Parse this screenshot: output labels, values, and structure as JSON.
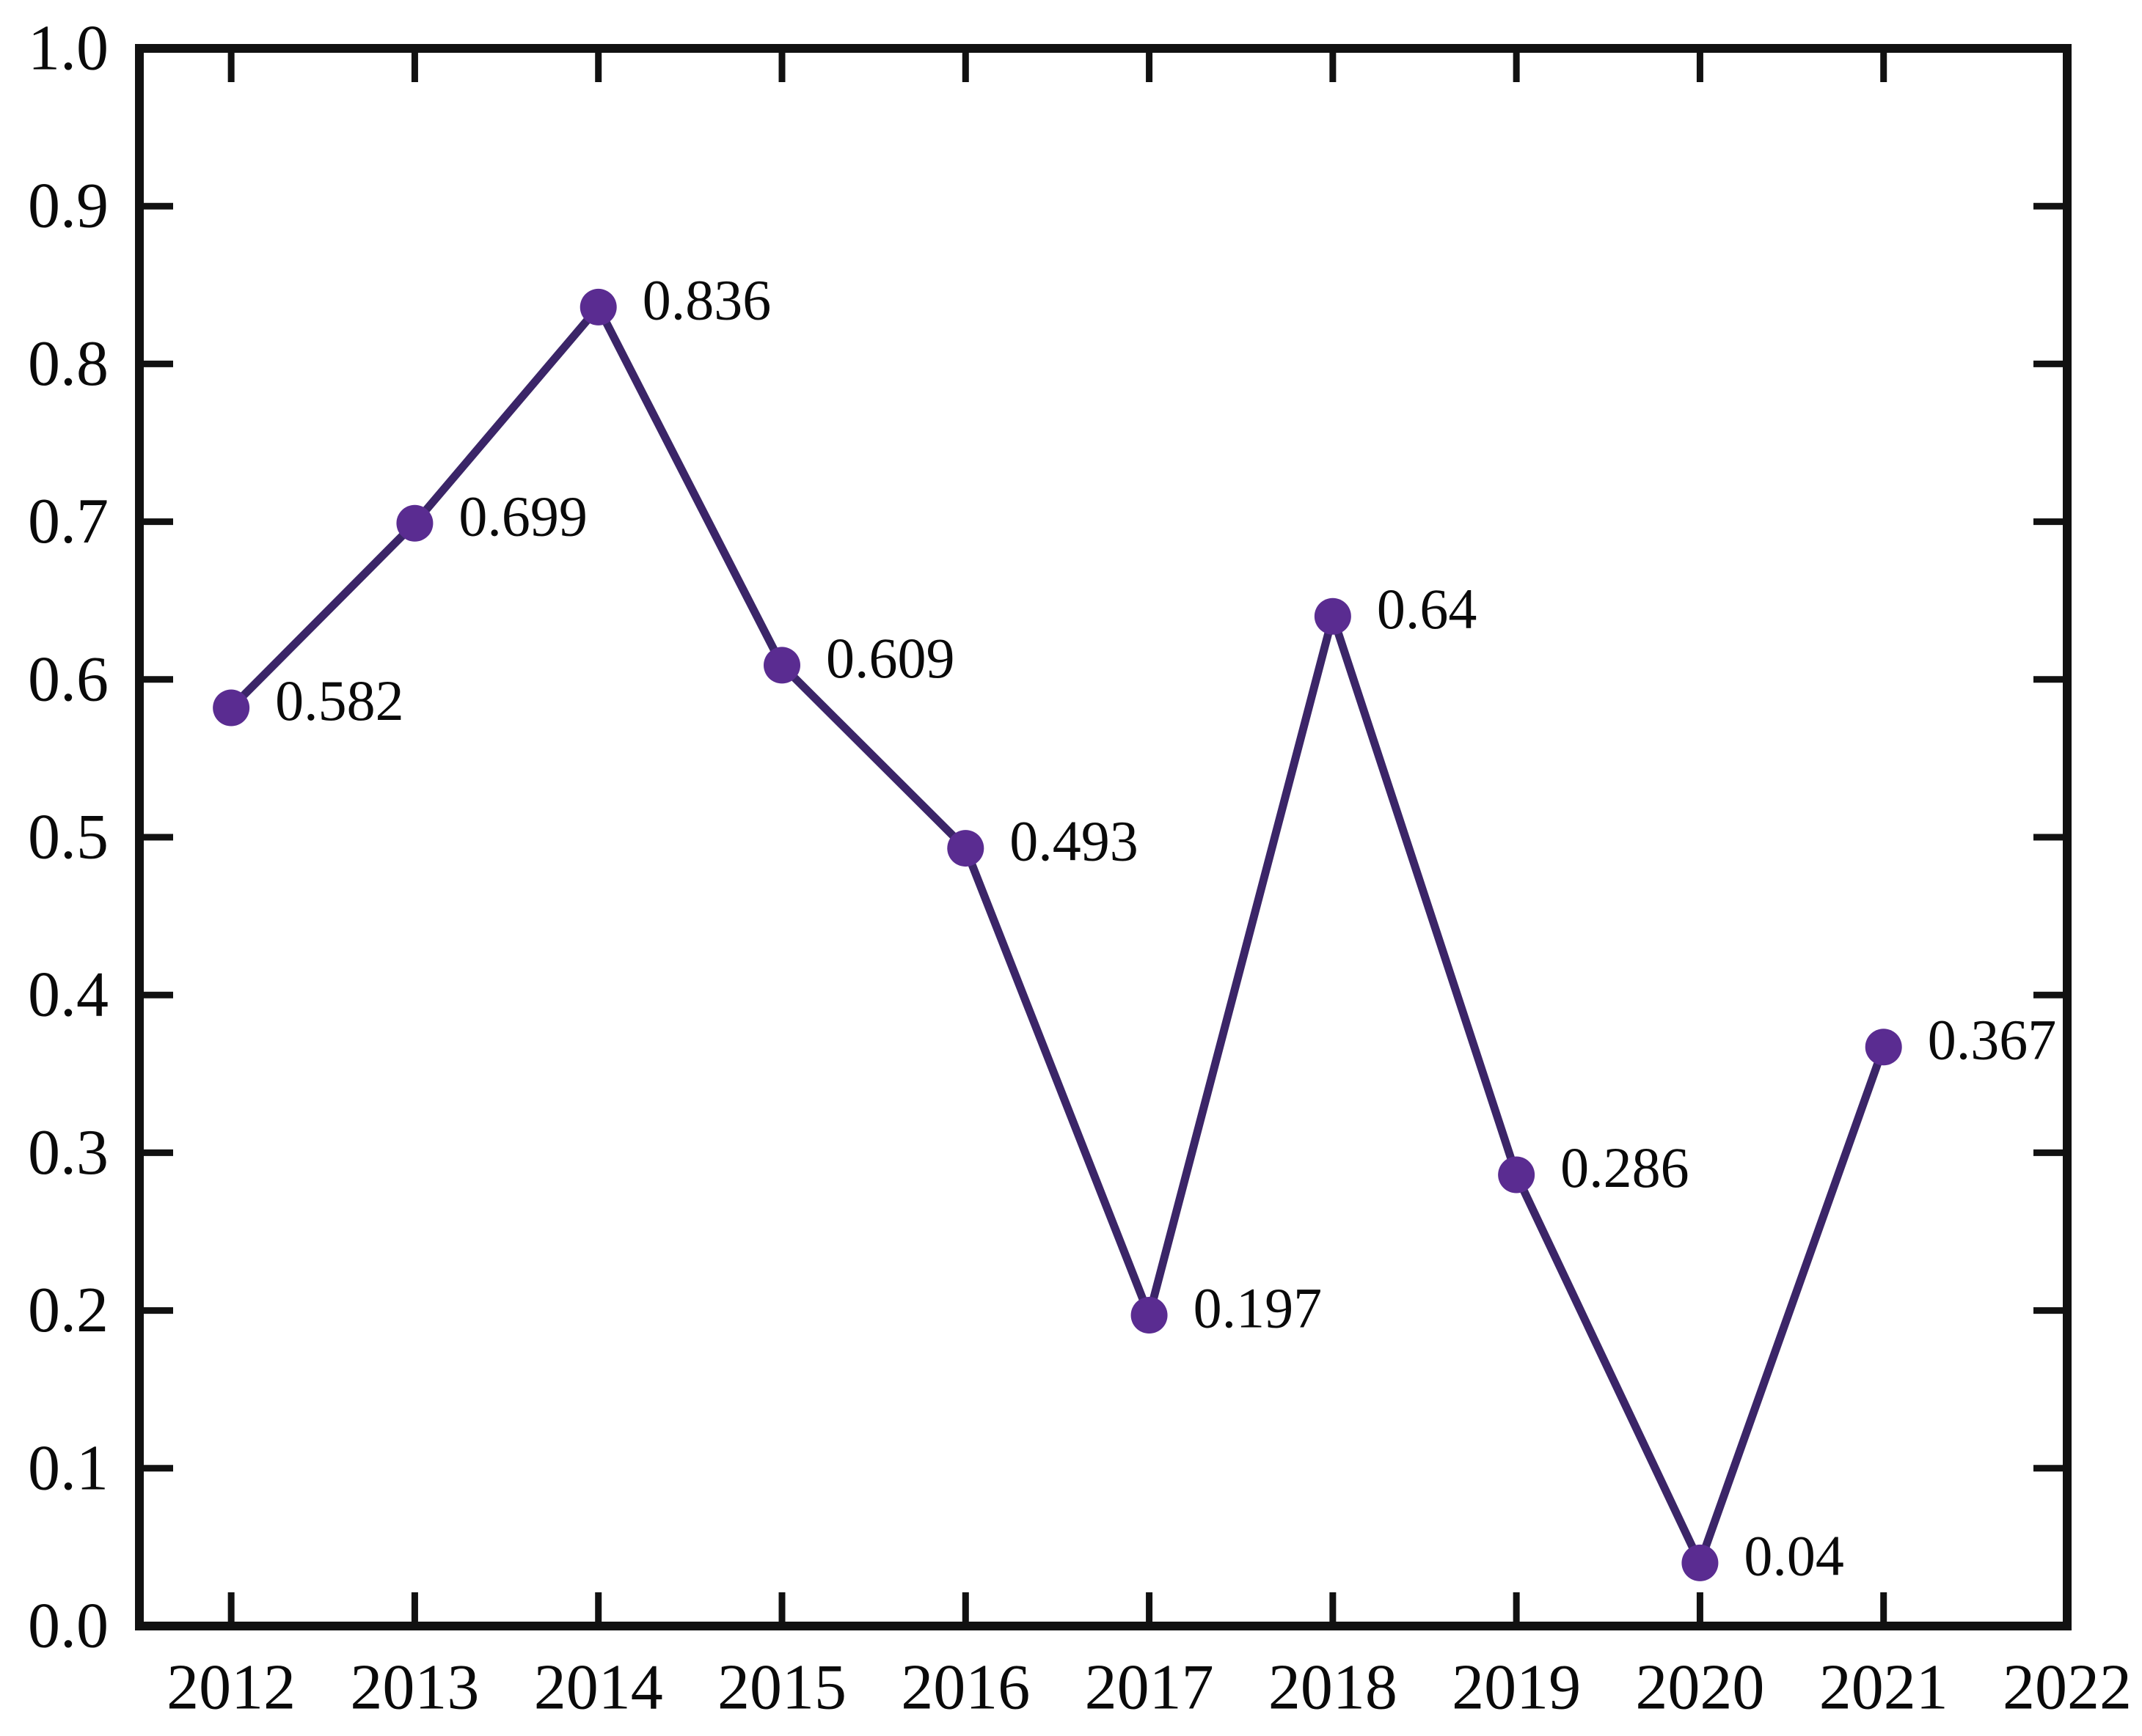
{
  "figure": {
    "background": "#ffffff"
  },
  "chart_data": {
    "type": "line",
    "title": "",
    "xlabel": "",
    "ylabel": "",
    "grid": false,
    "legend": false,
    "marker": "circle",
    "x": [
      2012,
      2013,
      2014,
      2015,
      2016,
      2017,
      2018,
      2019,
      2020,
      2021
    ],
    "categories": [
      "2012",
      "2013",
      "2014",
      "2015",
      "2016",
      "2017",
      "2018",
      "2019",
      "2020",
      "2021"
    ],
    "values": [
      0.582,
      0.699,
      0.836,
      0.609,
      0.493,
      0.197,
      0.64,
      0.286,
      0.04,
      0.367
    ],
    "point_labels": [
      "0.582",
      "0.699",
      "0.836",
      "0.609",
      "0.493",
      "0.197",
      "0.64",
      "0.286",
      "0.04",
      "0.367"
    ],
    "xlim": [
      2011.5,
      2022
    ],
    "ylim": [
      0.0,
      1.0
    ],
    "x_tick_values": [
      2012,
      2013,
      2014,
      2015,
      2016,
      2017,
      2018,
      2019,
      2020,
      2021,
      2022
    ],
    "x_tick_labels": [
      "2012",
      "2013",
      "2014",
      "2015",
      "2016",
      "2017",
      "2018",
      "2019",
      "2020",
      "2021",
      "2022"
    ],
    "y_tick_values": [
      0.0,
      0.1,
      0.2,
      0.3,
      0.4,
      0.5,
      0.6,
      0.7,
      0.8,
      0.9,
      1.0
    ],
    "y_tick_labels": [
      "0.0",
      "0.1",
      "0.2",
      "0.3",
      "0.4",
      "0.5",
      "0.6",
      "0.7",
      "0.8",
      "0.9",
      "1.0"
    ],
    "colors": {
      "line": "#3b2568",
      "marker": "#5a2c91",
      "axis": "#111111",
      "tick_label": "#0a0a0a",
      "point_label": "#0a0a0a"
    }
  }
}
